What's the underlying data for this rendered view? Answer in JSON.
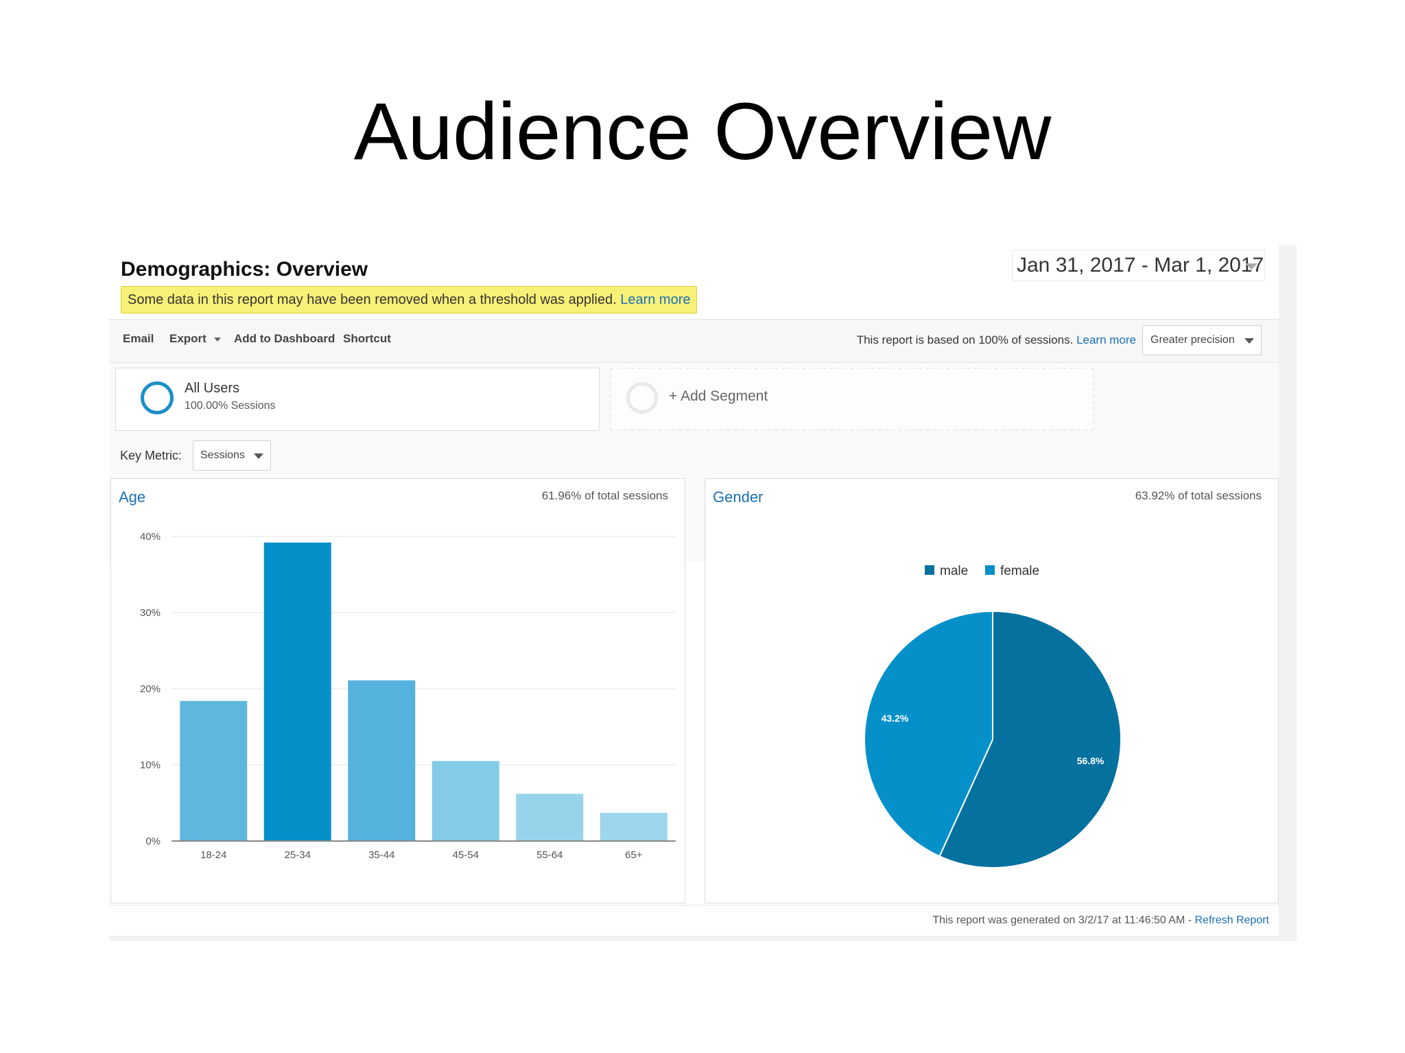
{
  "slide_title": "Audience Overview",
  "report": {
    "title": "Demographics: Overview",
    "notice_text": "Some data in this report may have been removed when a threshold was applied.",
    "notice_link": "Learn more",
    "date_range": "Jan 31, 2017 - Mar 1, 2017"
  },
  "toolbar": {
    "email": "Email",
    "export": "Export",
    "add_to_dashboard": "Add to Dashboard",
    "shortcut": "Shortcut",
    "sampling_text": "This report is based on 100% of sessions.",
    "sampling_link": "Learn more",
    "precision": "Greater precision"
  },
  "segments": {
    "active": {
      "name": "All Users",
      "sub": "100.00% Sessions"
    },
    "add_label": "+ Add Segment"
  },
  "key_metric": {
    "label": "Key Metric:",
    "value": "Sessions"
  },
  "age_panel": {
    "title": "Age",
    "pct_text": "61.96% of total sessions"
  },
  "gender_panel": {
    "title": "Gender",
    "pct_text": "63.92% of total sessions"
  },
  "footer": {
    "text": "This report was generated on 3/2/17 at 11:46:50 AM -",
    "link": "Refresh Report"
  },
  "colors": {
    "link": "#1a6fb5",
    "male": "#05719f",
    "female": "#0690c9",
    "bars": [
      "#5fb7de",
      "#0690c9",
      "#55b2dc",
      "#84cbe8",
      "#98d3ec",
      "#9dd6ed"
    ]
  },
  "chart_data": [
    {
      "type": "bar",
      "title": "Age",
      "categories": [
        "18-24",
        "25-34",
        "35-44",
        "45-54",
        "55-64",
        "65+"
      ],
      "values": [
        18.4,
        39.2,
        21.1,
        10.5,
        6.2,
        3.7
      ],
      "yticks": [
        "0%",
        "10%",
        "20%",
        "30%",
        "40%"
      ],
      "ylim": [
        0,
        40
      ],
      "grid": true
    },
    {
      "type": "pie",
      "title": "Gender",
      "labels": [
        "male",
        "female"
      ],
      "values": [
        56.8,
        43.2
      ],
      "value_labels": [
        "56.8%",
        "43.2%"
      ],
      "legend": "top"
    }
  ]
}
